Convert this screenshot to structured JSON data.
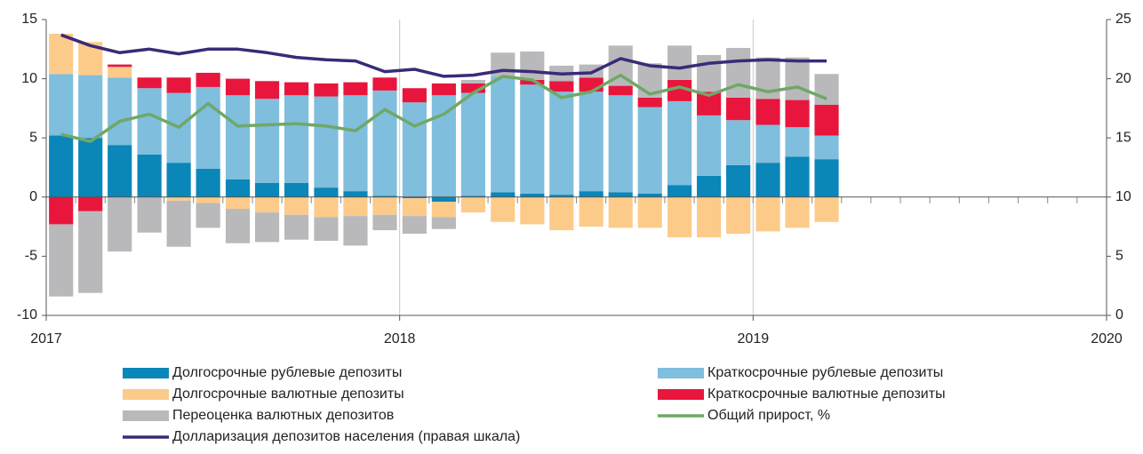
{
  "chart_data": {
    "type": "bar",
    "stacked": true,
    "x": [
      2017.042,
      2017.125,
      2017.208,
      2017.292,
      2017.375,
      2017.458,
      2017.542,
      2017.625,
      2017.708,
      2017.792,
      2017.875,
      2017.958,
      2018.042,
      2018.125,
      2018.208,
      2018.292,
      2018.375,
      2018.458,
      2018.542,
      2018.625,
      2018.708,
      2018.792,
      2018.875,
      2018.958,
      2019.042,
      2019.125,
      2019.208
    ],
    "xlim": [
      2017,
      2020
    ],
    "xticks": [
      2017,
      2018,
      2019,
      2020
    ],
    "ylim": [
      -10,
      15
    ],
    "yticks": [
      -10,
      -5,
      0,
      5,
      10,
      15
    ],
    "y2lim": [
      0,
      25
    ],
    "y2ticks": [
      0,
      5,
      10,
      15,
      20,
      25
    ],
    "series": [
      {
        "name": "Долгосрочные рублевые депозиты",
        "color": "#0a86b8",
        "values": [
          5.2,
          5.0,
          4.4,
          3.6,
          2.9,
          2.4,
          1.5,
          1.2,
          1.2,
          0.8,
          0.5,
          0.1,
          -0.1,
          -0.4,
          0.1,
          0.4,
          0.3,
          0.2,
          0.5,
          0.4,
          0.3,
          1.0,
          1.8,
          2.7,
          2.9,
          3.4,
          3.2
        ]
      },
      {
        "name": "Краткосрочные рублевые депозиты",
        "color": "#7fbedd",
        "values": [
          5.2,
          5.3,
          5.7,
          5.6,
          5.9,
          6.9,
          7.1,
          7.1,
          7.4,
          7.7,
          8.1,
          8.9,
          8.0,
          8.6,
          8.7,
          9.8,
          9.2,
          8.7,
          8.4,
          8.2,
          7.3,
          7.1,
          5.1,
          3.8,
          3.2,
          2.5,
          2.0
        ]
      },
      {
        "name": "Долгосрочные валютные депозиты",
        "color": "#fccb8a",
        "values": [
          3.4,
          2.8,
          0.9,
          0,
          -0.3,
          -0.5,
          -1.0,
          -1.3,
          -1.5,
          -1.7,
          -1.6,
          -1.5,
          -1.5,
          -1.3,
          -1.3,
          -2.1,
          -2.3,
          -2.8,
          -2.5,
          -2.6,
          -2.6,
          -3.4,
          -3.4,
          -3.1,
          -2.9,
          -2.6,
          -2.1
        ]
      },
      {
        "name": "Краткосрочные валютные депозиты",
        "color": "#e8163c",
        "values": [
          -2.3,
          -1.2,
          0.2,
          0.9,
          1.3,
          1.2,
          1.4,
          1.5,
          1.1,
          1.1,
          1.1,
          1.1,
          1.2,
          1.0,
          0.8,
          0,
          0.4,
          0.9,
          1.2,
          0.8,
          0.8,
          1.8,
          2.0,
          1.9,
          2.2,
          2.3,
          2.6
        ]
      },
      {
        "name": "Переоценка валютных депозитов",
        "color": "#b9b9bb",
        "values": [
          -6.1,
          -6.9,
          -4.6,
          -3.0,
          -3.9,
          -2.1,
          -2.9,
          -2.5,
          -2.1,
          -2.0,
          -2.5,
          -1.3,
          -1.5,
          -1.0,
          0.3,
          2.0,
          2.4,
          1.3,
          1.1,
          3.4,
          2.9,
          2.9,
          3.1,
          4.2,
          3.5,
          3.6,
          2.6
        ]
      },
      {
        "name": "Общий прирост, %",
        "color": "#6fa867",
        "type": "line",
        "axis": "y2",
        "values": [
          15.3,
          14.7,
          16.4,
          17.0,
          15.9,
          17.9,
          16.0,
          16.1,
          16.2,
          16.0,
          15.6,
          17.4,
          16.0,
          17.0,
          18.8,
          20.2,
          19.9,
          18.4,
          18.9,
          20.3,
          18.7,
          19.3,
          18.6,
          19.5,
          18.9,
          19.3,
          18.3
        ]
      },
      {
        "name": "Долларизация депозитов населения (правая шкала)",
        "color": "#3b2a78",
        "type": "line",
        "axis": "y2",
        "values": [
          23.7,
          22.8,
          22.2,
          22.5,
          22.1,
          22.5,
          22.5,
          22.2,
          21.8,
          21.6,
          21.5,
          20.6,
          20.8,
          20.2,
          20.3,
          20.7,
          20.6,
          20.4,
          20.5,
          21.7,
          21.1,
          20.9,
          21.3,
          21.5,
          21.6,
          21.5,
          21.5
        ]
      }
    ]
  }
}
